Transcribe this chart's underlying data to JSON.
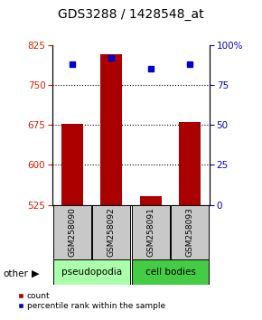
{
  "title": "GDS3288 / 1428548_at",
  "samples": [
    "GSM258090",
    "GSM258092",
    "GSM258091",
    "GSM258093"
  ],
  "bar_values": [
    676,
    808,
    541,
    680
  ],
  "percentile_values": [
    88,
    92,
    85,
    88
  ],
  "ylim_left": [
    525,
    825
  ],
  "ylim_right": [
    0,
    100
  ],
  "yticks_left": [
    525,
    600,
    675,
    750,
    825
  ],
  "yticks_right": [
    0,
    25,
    50,
    75,
    100
  ],
  "ytick_right_labels": [
    "0",
    "25",
    "50",
    "75",
    "100%"
  ],
  "bar_color": "#aa0000",
  "dot_color": "#0000cc",
  "bar_bottom": 525,
  "groups": [
    {
      "label": "pseudopodia",
      "color": "#aaffaa",
      "samples": [
        0,
        1
      ]
    },
    {
      "label": "cell bodies",
      "color": "#44cc44",
      "samples": [
        2,
        3
      ]
    }
  ],
  "other_label": "other",
  "legend_count_label": "count",
  "legend_pct_label": "percentile rank within the sample",
  "sample_bg_color": "#c8c8c8",
  "title_fontsize": 10
}
